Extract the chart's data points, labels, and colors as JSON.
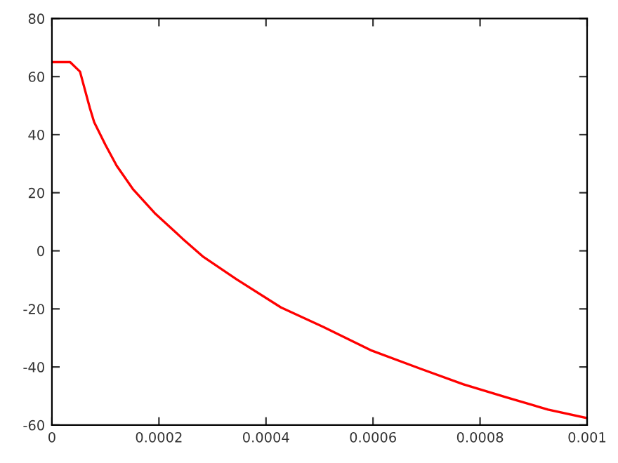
{
  "chart_data": {
    "type": "line",
    "x": [
      0,
      3.4e-05,
      5.25e-05,
      7.1e-05,
      7.9e-05,
      0.0001,
      0.000121,
      0.000152,
      0.000192,
      0.000244,
      0.000283,
      0.000345,
      0.000428,
      0.000507,
      0.000598,
      0.00069,
      0.000769,
      0.000848,
      0.000927,
      0.001
    ],
    "series": [
      {
        "color": "#ff0000",
        "values": [
          65,
          65,
          61.7,
          49.1,
          44.3,
          36.5,
          29.3,
          21.1,
          13,
          4.2,
          -2.1,
          -9.8,
          -19.5,
          -26.2,
          -34.4,
          -40.7,
          -46,
          -50.4,
          -54.7,
          -57.6
        ]
      }
    ],
    "xlim": [
      0,
      0.001
    ],
    "ylim": [
      -60,
      80
    ],
    "xticks": [
      0,
      0.0002,
      0.0004,
      0.0006,
      0.0008,
      0.001
    ],
    "yticks": [
      -60,
      -40,
      -20,
      0,
      20,
      40,
      60,
      80
    ],
    "grid": false,
    "legend": false,
    "marker": "none",
    "line_style": "solid"
  }
}
